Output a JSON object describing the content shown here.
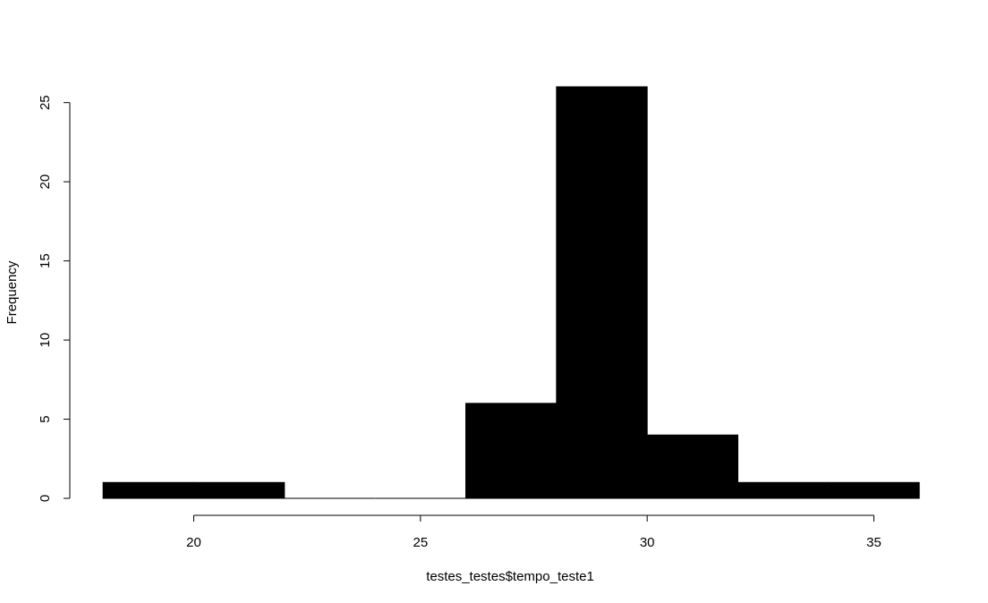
{
  "chart_data": {
    "type": "bar",
    "title": "",
    "xlabel": "testes_testes$tempo_teste1",
    "ylabel": "Frequency",
    "bins": [
      {
        "start": 18,
        "end": 20,
        "count": 1
      },
      {
        "start": 20,
        "end": 22,
        "count": 1
      },
      {
        "start": 22,
        "end": 24,
        "count": 0
      },
      {
        "start": 24,
        "end": 26,
        "count": 0
      },
      {
        "start": 26,
        "end": 28,
        "count": 6
      },
      {
        "start": 28,
        "end": 30,
        "count": 26
      },
      {
        "start": 30,
        "end": 32,
        "count": 4
      },
      {
        "start": 32,
        "end": 34,
        "count": 1
      },
      {
        "start": 34,
        "end": 36,
        "count": 1
      }
    ],
    "xticks": [
      "20",
      "25",
      "30",
      "35"
    ],
    "yticks": [
      "0",
      "5",
      "10",
      "15",
      "20",
      "25"
    ],
    "xlim": [
      18,
      36
    ],
    "ylim": [
      0,
      26
    ],
    "bar_fill": "#000000",
    "bar_stroke": "#000000",
    "grid": false
  }
}
